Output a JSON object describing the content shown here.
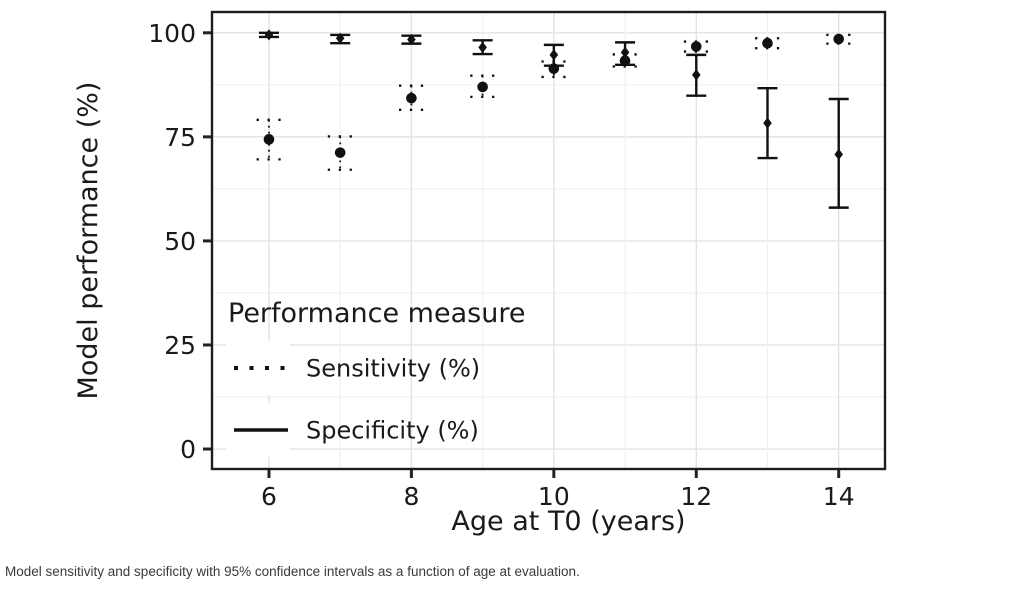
{
  "figure": {
    "caption": "Model sensitivity and specificity with 95% confidence intervals as a function of age at evaluation."
  },
  "chart_data": {
    "type": "scatter",
    "title": "",
    "xlabel": "Age at T0 (years)",
    "ylabel": "Model performance (%)",
    "x": [
      6,
      7,
      8,
      9,
      10,
      11,
      12,
      13,
      14
    ],
    "xlim": [
      5.2,
      14.65
    ],
    "ylim": [
      -4.8,
      105
    ],
    "x_major_ticks": [
      6,
      8,
      10,
      12,
      14
    ],
    "x_minor_gridlines": [
      7,
      9,
      11,
      13
    ],
    "y_major_ticks": [
      0,
      25,
      50,
      75,
      100
    ],
    "y_minor_gridlines": [
      12.5,
      37.5,
      62.5,
      87.5
    ],
    "grid": true,
    "error_bars": "95% confidence intervals",
    "legend": {
      "title": "Performance measure",
      "position": "inside-bottom-left",
      "entries": [
        {
          "label": "Sensitivity (%)",
          "line": "dotted",
          "marker": "circle"
        },
        {
          "label": "Specificity (%)",
          "line": "solid",
          "marker": "diamond"
        }
      ]
    },
    "series": [
      {
        "name": "Specificity (%)",
        "line": "solid",
        "marker": "diamond",
        "values": [
          99.5,
          98.7,
          98.4,
          96.5,
          94.7,
          95.3,
          89.9,
          78.3,
          70.8
        ],
        "ci_low": [
          99.0,
          97.5,
          97.4,
          94.9,
          92.1,
          92.3,
          84.9,
          69.9,
          58.0
        ],
        "ci_high": [
          100.0,
          99.5,
          99.3,
          98.2,
          97.1,
          97.7,
          94.7,
          86.7,
          84.1
        ]
      },
      {
        "name": "Sensitivity (%)",
        "line": "dotted",
        "marker": "circle",
        "values": [
          74.4,
          71.2,
          84.3,
          87.0,
          91.4,
          93.3,
          96.7,
          97.5,
          98.5
        ],
        "ci_low": [
          69.6,
          67.1,
          81.5,
          84.6,
          89.4,
          91.9,
          95.5,
          96.3,
          97.4
        ],
        "ci_high": [
          79.1,
          75.1,
          87.3,
          89.7,
          93.1,
          94.8,
          97.9,
          98.7,
          99.5
        ]
      }
    ],
    "colors": {
      "foreground": "#111111",
      "grid_major": "#e3e3e3",
      "grid_minor": "#f0f0f0",
      "panel_border": "#1c1c1c",
      "caption": "#3a3a3a",
      "background": "#ffffff"
    }
  }
}
